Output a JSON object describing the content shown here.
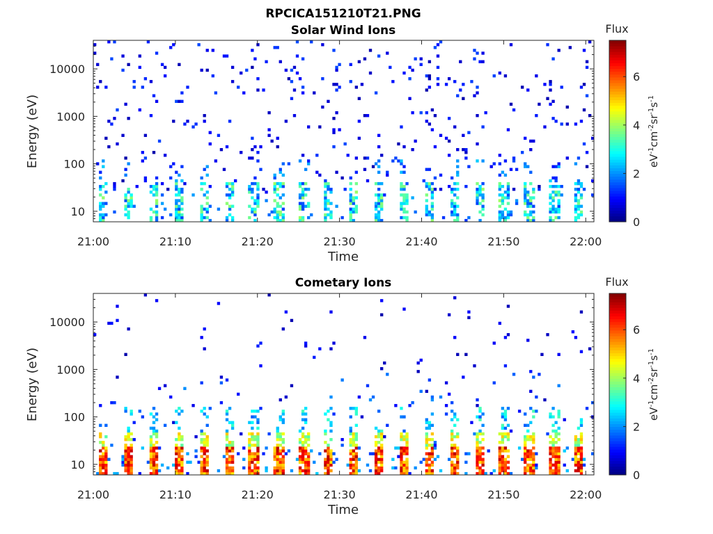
{
  "figure_title": "RPCICA151210T21.PNG",
  "chart_data": [
    {
      "type": "heatmap",
      "title": "Solar Wind Ions",
      "xlabel": "Time",
      "ylabel": "Energy (eV)",
      "y_scale": "log",
      "ylim": [
        6,
        40000
      ],
      "xlim": [
        "21:00",
        "22:01"
      ],
      "x_ticks": [
        "21:00",
        "21:10",
        "21:20",
        "21:30",
        "21:40",
        "21:50",
        "22:00"
      ],
      "y_ticks": [
        "10",
        "100",
        "1000",
        "10000"
      ],
      "colorbar": {
        "title": "Flux",
        "label": "eV-1cm-2sr-1s-1",
        "ticks": [
          "0",
          "2",
          "4",
          "6"
        ],
        "range": [
          0,
          7.5
        ],
        "colormap": "jet"
      },
      "description_of_data": "Sparse low flux (0.3-1.5) scattered 30 eV - 30 keV; periodic bursts every ~3 min at 6-40 eV with flux 1.5-4",
      "burst_period_min": 3.05,
      "burst_energy_range_eV": [
        6,
        40
      ],
      "burst_flux_range": [
        1.5,
        4.2
      ]
    },
    {
      "type": "heatmap",
      "title": "Cometary Ions",
      "xlabel": "Time",
      "ylabel": "Energy (eV)",
      "y_scale": "log",
      "ylim": [
        6,
        40000
      ],
      "xlim": [
        "21:00",
        "22:01"
      ],
      "x_ticks": [
        "21:00",
        "21:10",
        "21:20",
        "21:30",
        "21:40",
        "21:50",
        "22:00"
      ],
      "y_ticks": [
        "10",
        "100",
        "1000",
        "10000"
      ],
      "colorbar": {
        "title": "Flux",
        "label": "eV-1cm-2sr-1s-1",
        "ticks": [
          "0",
          "2",
          "4",
          "6"
        ],
        "range": [
          0,
          7.5
        ],
        "colormap": "jet"
      },
      "description_of_data": "Periodic bursts every ~3 min peaking at 8-20 eV with flux up to ~7, tails to ~100 eV; sparse low flux up to ~10 keV",
      "burst_period_min": 3.05,
      "burst_energy_range_eV": [
        6,
        120
      ],
      "burst_peak_flux": 7.0
    }
  ]
}
